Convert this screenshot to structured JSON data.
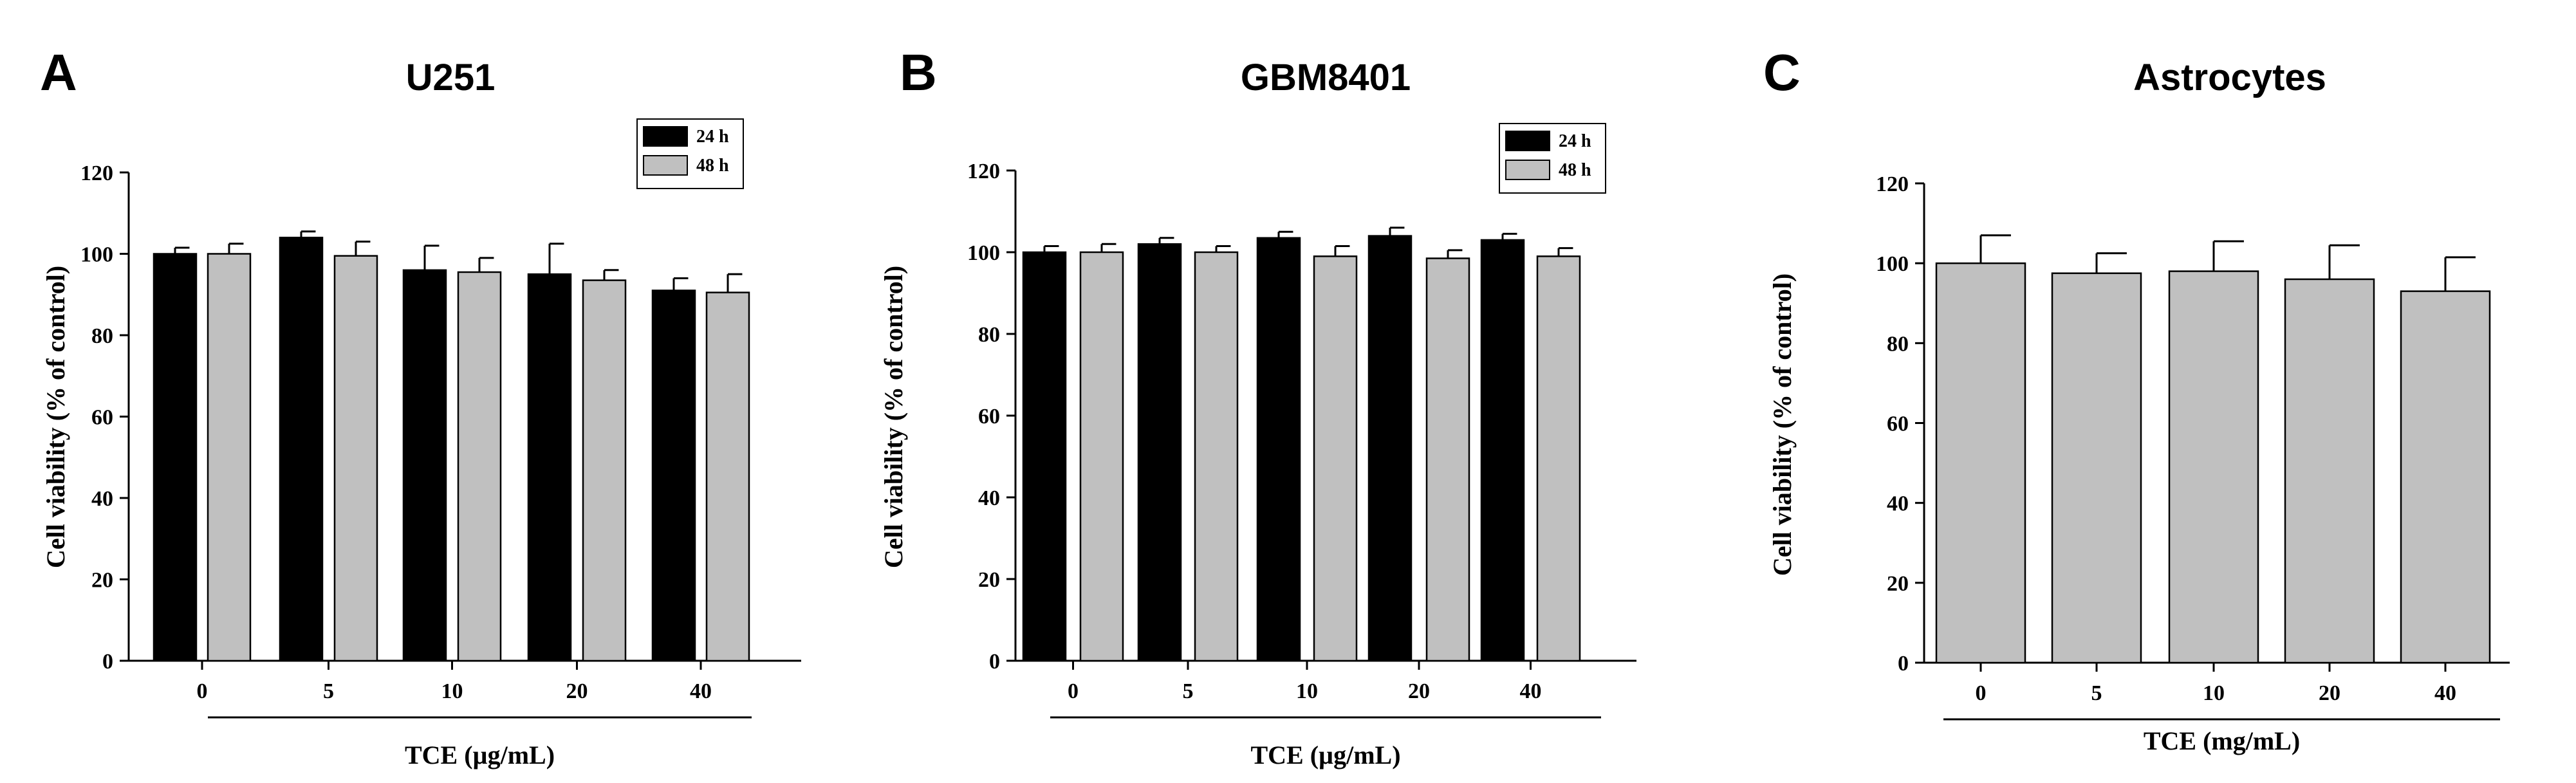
{
  "chart_data": [
    {
      "type": "bar",
      "panel": "A",
      "title": "U251",
      "xlabel": "TCE (µg/mL)",
      "ylabel": "Cell viability (% of control)",
      "ylim": [
        0,
        120
      ],
      "yticks": [
        0,
        20,
        40,
        60,
        80,
        100,
        120
      ],
      "categories": [
        "0",
        "5",
        "10",
        "20",
        "40"
      ],
      "legend": "top-right",
      "series": [
        {
          "name": "24 h",
          "color": "#000000",
          "values": [
            100,
            104,
            96,
            95,
            91
          ],
          "errors": [
            1.5,
            1.5,
            6,
            7.5,
            3
          ]
        },
        {
          "name": "48 h",
          "color": "#c0c0c0",
          "values": [
            100,
            99.5,
            95.5,
            93.5,
            90.5
          ],
          "errors": [
            2.5,
            3.5,
            3.5,
            2.5,
            4.5
          ]
        }
      ]
    },
    {
      "type": "bar",
      "panel": "B",
      "title": "GBM8401",
      "xlabel": "TCE (µg/mL)",
      "ylabel": "Cell viability (% of control)",
      "ylim": [
        0,
        120
      ],
      "yticks": [
        0,
        20,
        40,
        60,
        80,
        100,
        120
      ],
      "categories": [
        "0",
        "5",
        "10",
        "20",
        "40"
      ],
      "legend": "top-right",
      "series": [
        {
          "name": "24 h",
          "color": "#000000",
          "values": [
            100,
            102,
            103.5,
            104,
            103
          ],
          "errors": [
            1.5,
            1.5,
            1.5,
            2,
            1.5
          ]
        },
        {
          "name": "48 h",
          "color": "#c0c0c0",
          "values": [
            100,
            100,
            99,
            98.5,
            99
          ],
          "errors": [
            2,
            1.5,
            2.5,
            2,
            2
          ]
        }
      ]
    },
    {
      "type": "bar",
      "panel": "C",
      "title": "Astrocytes",
      "xlabel": "TCE (mg/mL)",
      "ylabel": "Cell viability (% of control)",
      "ylim": [
        0,
        120
      ],
      "yticks": [
        0,
        20,
        40,
        60,
        80,
        100,
        120
      ],
      "categories": [
        "0",
        "5",
        "10",
        "20",
        "40"
      ],
      "series": [
        {
          "name": "",
          "color": "#c0c0c0",
          "values": [
            100,
            97.5,
            98,
            96,
            93
          ],
          "errors": [
            7,
            5,
            7.5,
            8.5,
            8.5
          ]
        }
      ]
    }
  ]
}
